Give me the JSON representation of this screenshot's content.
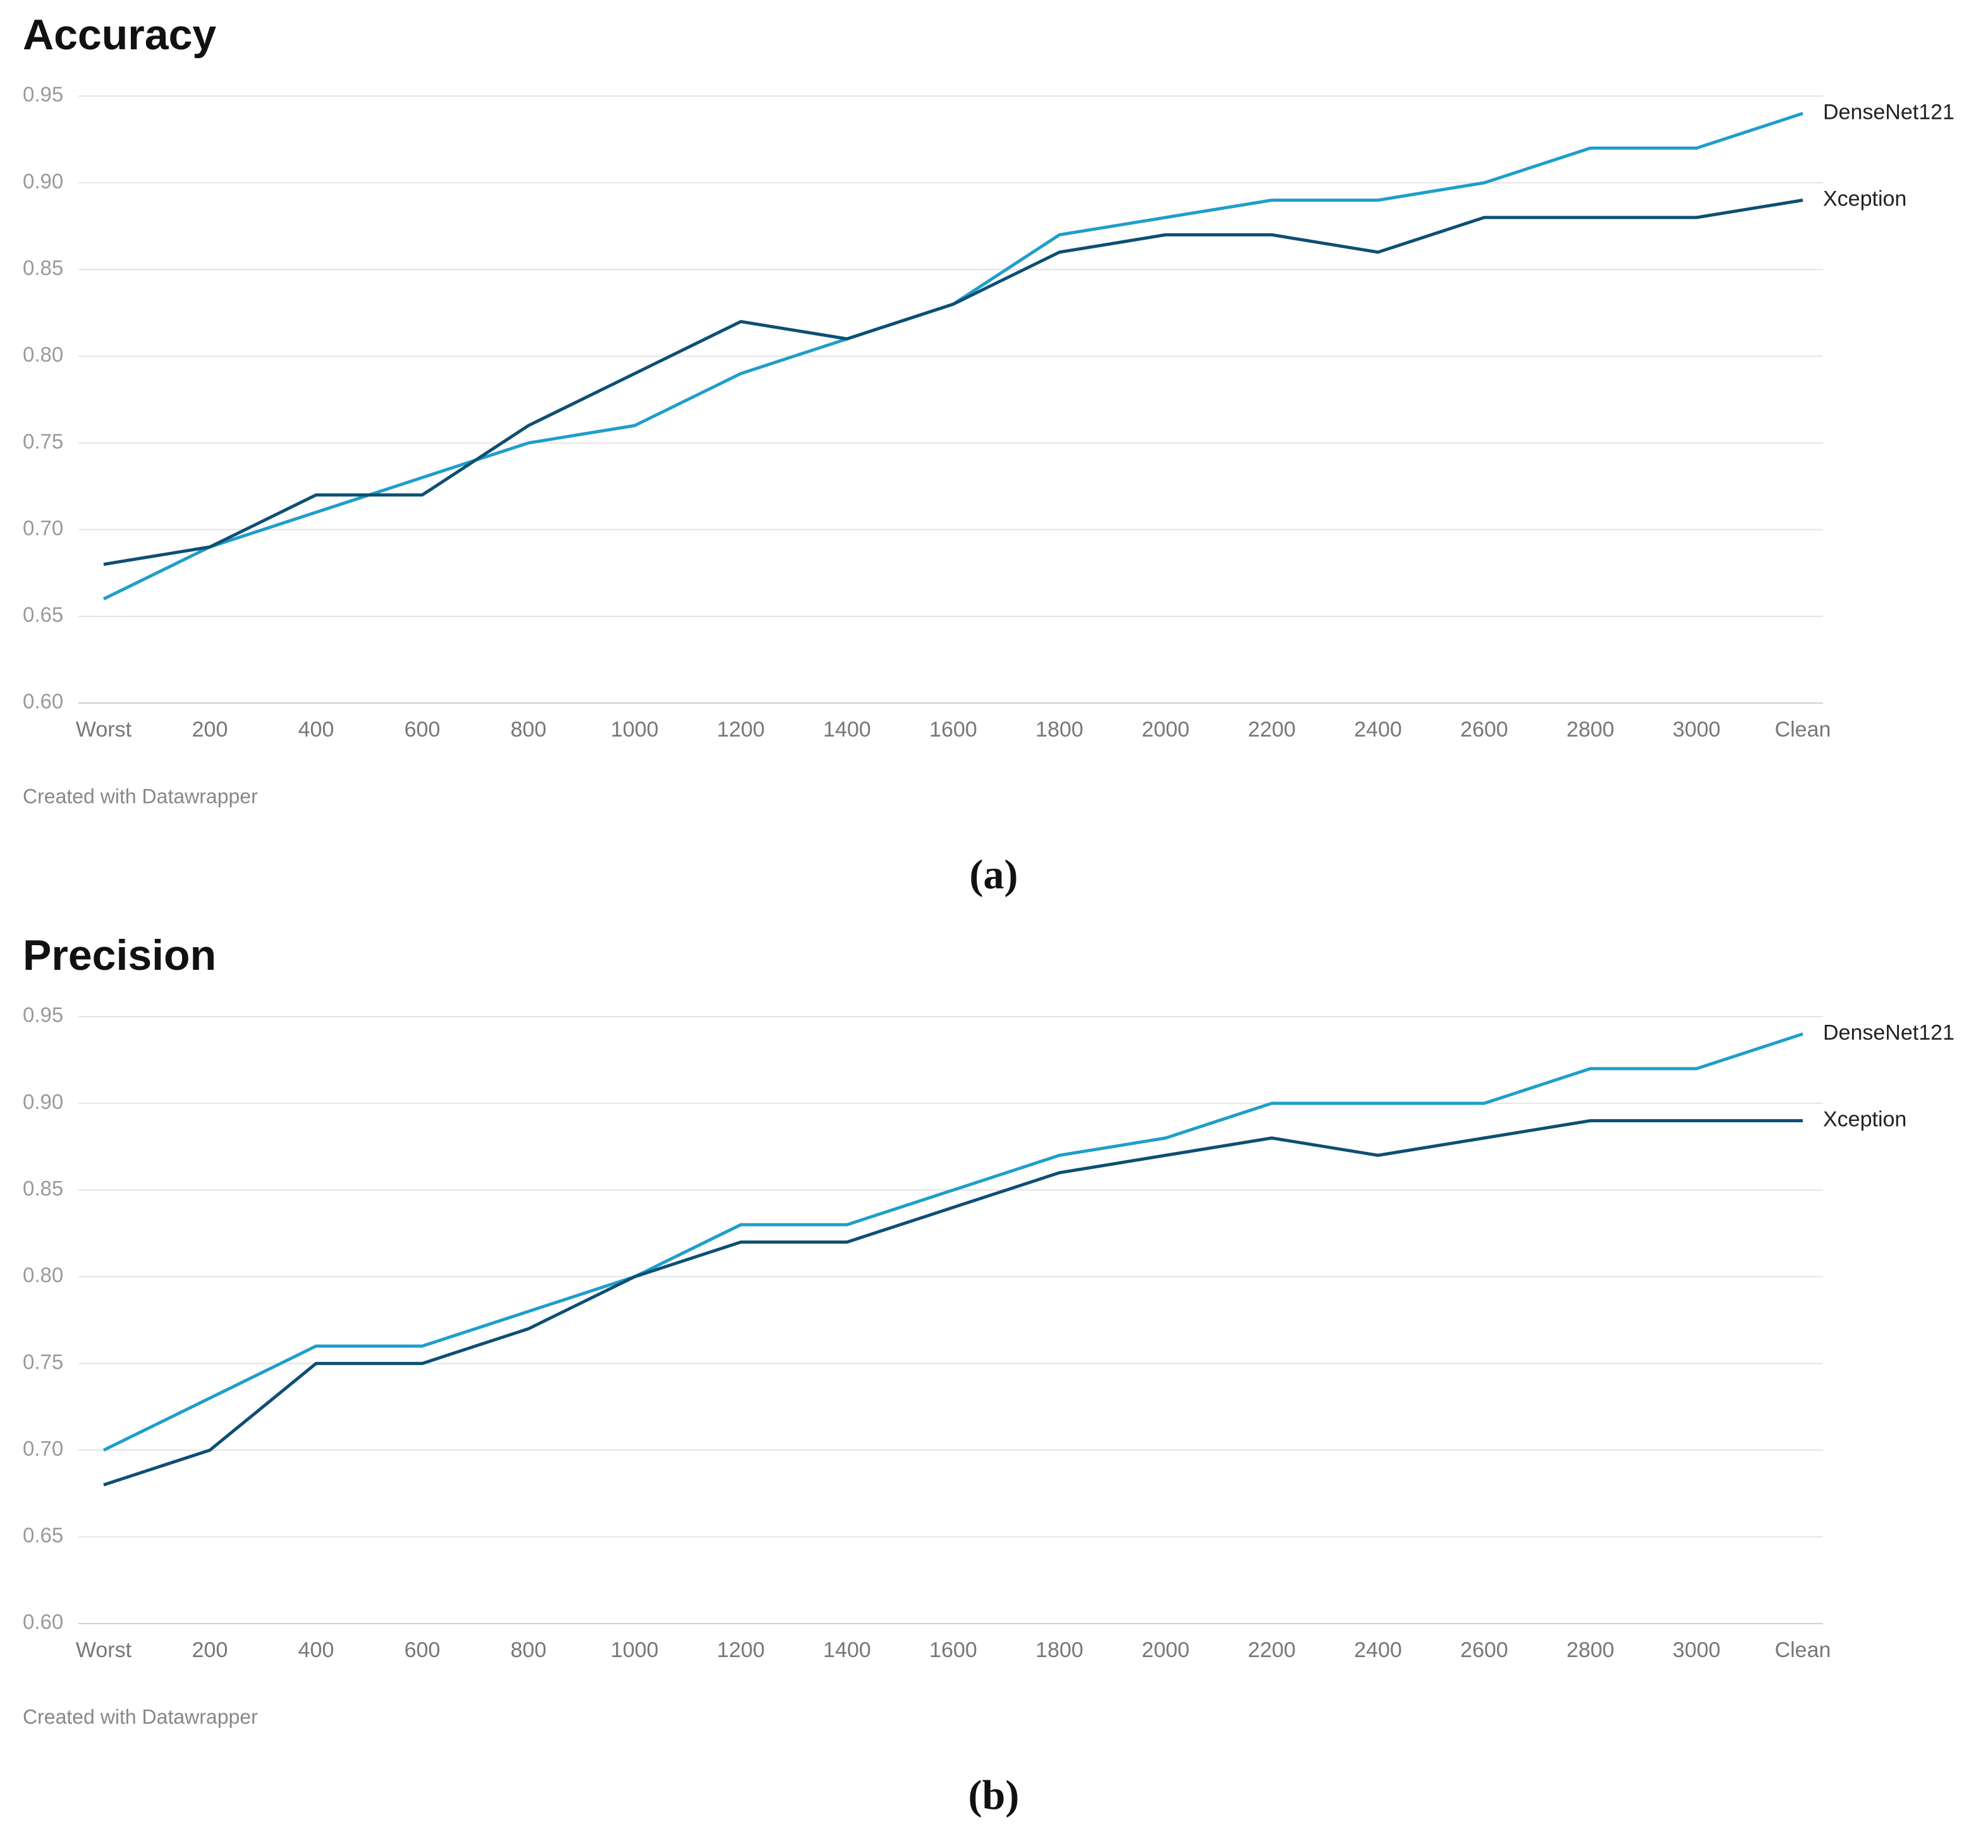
{
  "chart_data": [
    {
      "type": "line",
      "title": "Accuracy",
      "categories": [
        "Worst",
        "200",
        "400",
        "600",
        "800",
        "1000",
        "1200",
        "1400",
        "1600",
        "1800",
        "2000",
        "2200",
        "2400",
        "2600",
        "2800",
        "3000",
        "Clean"
      ],
      "series": [
        {
          "name": "DenseNet121",
          "color": "#1f9ecb",
          "values": [
            0.66,
            0.69,
            0.71,
            0.73,
            0.75,
            0.76,
            0.79,
            0.81,
            0.83,
            0.87,
            0.88,
            0.89,
            0.89,
            0.9,
            0.92,
            0.92,
            0.94
          ]
        },
        {
          "name": "Xception",
          "color": "#0d4f73",
          "values": [
            0.68,
            0.69,
            0.72,
            0.72,
            0.76,
            0.79,
            0.82,
            0.81,
            0.83,
            0.86,
            0.87,
            0.87,
            0.86,
            0.88,
            0.88,
            0.88,
            0.89
          ]
        }
      ],
      "ylim": [
        0.6,
        0.95
      ],
      "yticks": [
        {
          "value": 0.6,
          "label": "0.60"
        },
        {
          "value": 0.65,
          "label": "0.65"
        },
        {
          "value": 0.7,
          "label": "0.70"
        },
        {
          "value": 0.75,
          "label": "0.75"
        },
        {
          "value": 0.8,
          "label": "0.80"
        },
        {
          "value": 0.85,
          "label": "0.85"
        },
        {
          "value": 0.9,
          "label": "0.90"
        },
        {
          "value": 0.95,
          "label": "0.95"
        }
      ],
      "grid": true,
      "note": "Created with Datawrapper",
      "caption": "(a)"
    },
    {
      "type": "line",
      "title": "Precision",
      "categories": [
        "Worst",
        "200",
        "400",
        "600",
        "800",
        "1000",
        "1200",
        "1400",
        "1600",
        "1800",
        "2000",
        "2200",
        "2400",
        "2600",
        "2800",
        "3000",
        "Clean"
      ],
      "series": [
        {
          "name": "DenseNet121",
          "color": "#1f9ecb",
          "values": [
            0.7,
            0.73,
            0.76,
            0.76,
            0.78,
            0.8,
            0.83,
            0.83,
            0.85,
            0.87,
            0.88,
            0.9,
            0.9,
            0.9,
            0.92,
            0.92,
            0.94
          ]
        },
        {
          "name": "Xception",
          "color": "#0d4f73",
          "values": [
            0.68,
            0.7,
            0.75,
            0.75,
            0.77,
            0.8,
            0.82,
            0.82,
            0.84,
            0.86,
            0.87,
            0.88,
            0.87,
            0.88,
            0.89,
            0.89,
            0.89
          ]
        }
      ],
      "ylim": [
        0.6,
        0.95
      ],
      "yticks": [
        {
          "value": 0.6,
          "label": "0.60"
        },
        {
          "value": 0.65,
          "label": "0.65"
        },
        {
          "value": 0.7,
          "label": "0.70"
        },
        {
          "value": 0.75,
          "label": "0.75"
        },
        {
          "value": 0.8,
          "label": "0.80"
        },
        {
          "value": 0.85,
          "label": "0.85"
        },
        {
          "value": 0.9,
          "label": "0.90"
        },
        {
          "value": 0.95,
          "label": "0.95"
        }
      ],
      "grid": true,
      "note": "Created with Datawrapper",
      "caption": "(b)"
    }
  ]
}
